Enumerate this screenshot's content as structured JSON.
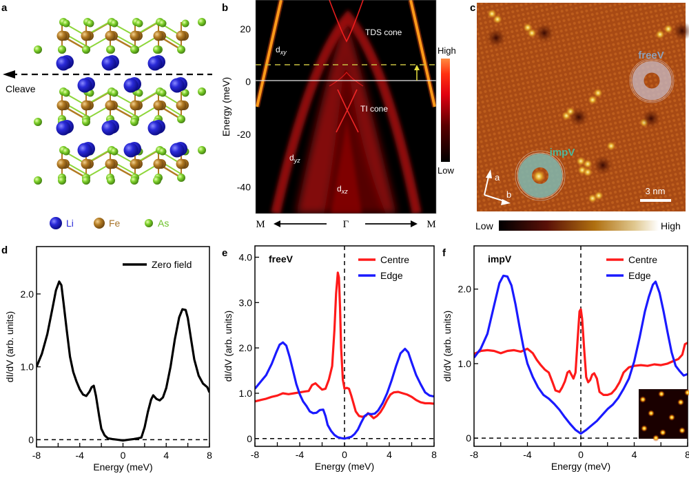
{
  "panels": {
    "a": {
      "label": "a",
      "cleave_label": "Cleave",
      "legend": [
        {
          "name": "Li",
          "color": "#2a2ad8",
          "text_color": "#2a2ad8"
        },
        {
          "name": "Fe",
          "color": "#b27a22",
          "text_color": "#a8742a"
        },
        {
          "name": "As",
          "color": "#7ccf2a",
          "text_color": "#6dc22a"
        }
      ]
    },
    "b": {
      "label": "b",
      "ylabel": "Energy (meV)",
      "yticks": [
        "20",
        "0",
        "-20",
        "-40"
      ],
      "ytick_values": [
        20,
        0,
        -20,
        -40
      ],
      "ylim": [
        -50,
        31
      ],
      "xlabels": [
        "M",
        "Γ",
        "M"
      ],
      "annotations": {
        "tds": "TDS cone",
        "ti": "TI cone",
        "dxy": "d",
        "dxy_sub": "xy",
        "dyz": "d",
        "dyz_sub": "yz",
        "dxz": "d",
        "dxz_sub": "xz"
      },
      "fermi_level": 0,
      "dashed_level": 6,
      "colorbar": {
        "high": "High",
        "low": "Low"
      }
    },
    "c": {
      "label": "c",
      "freeV": "freeV",
      "impV": "impV",
      "axis_a": "a",
      "axis_b": "b",
      "scale_bar": "3 nm",
      "colorbar": {
        "low": "Low",
        "high": "High"
      }
    }
  },
  "chart_data": [
    {
      "panel": "d",
      "type": "line",
      "title": "",
      "xlabel": "Energy (meV)",
      "ylabel": "dI/dV (arb. units)",
      "xlim": [
        -8,
        8
      ],
      "ylim": [
        -0.1,
        2.65
      ],
      "xticks": [
        "-8",
        "-4",
        "0",
        "4",
        "8"
      ],
      "xtick_values": [
        -8,
        -4,
        0,
        4,
        8
      ],
      "yticks": [
        "0",
        "1.0",
        "2.0"
      ],
      "ytick_values": [
        0,
        1.0,
        2.0
      ],
      "legend_position": "top-right",
      "series": [
        {
          "name": "Zero field",
          "color": "#000000",
          "x": [
            -8,
            -7.5,
            -7,
            -6.5,
            -6.2,
            -5.9,
            -5.7,
            -5.5,
            -5.2,
            -4.9,
            -4.6,
            -4.3,
            -4.0,
            -3.7,
            -3.4,
            -3.1,
            -2.9,
            -2.7,
            -2.5,
            -2.2,
            -2.0,
            -1.7,
            -1.4,
            -1.0,
            -0.5,
            0,
            0.5,
            1.0,
            1.4,
            1.7,
            2.0,
            2.3,
            2.6,
            2.8,
            3.1,
            3.4,
            3.7,
            4.0,
            4.4,
            4.8,
            5.2,
            5.5,
            5.8,
            6.0,
            6.3,
            6.6,
            7.0,
            7.4,
            7.8,
            8
          ],
          "y": [
            1.0,
            1.18,
            1.45,
            1.82,
            2.05,
            2.17,
            2.12,
            1.88,
            1.5,
            1.14,
            0.93,
            0.8,
            0.69,
            0.62,
            0.6,
            0.66,
            0.72,
            0.74,
            0.6,
            0.32,
            0.15,
            0.06,
            0.02,
            0.01,
            0.0,
            -0.01,
            0.0,
            0.01,
            0.02,
            0.03,
            0.17,
            0.38,
            0.55,
            0.61,
            0.56,
            0.54,
            0.58,
            0.71,
            1.0,
            1.38,
            1.68,
            1.79,
            1.78,
            1.67,
            1.38,
            1.1,
            0.88,
            0.77,
            0.72,
            0.65
          ]
        }
      ]
    },
    {
      "panel": "e",
      "type": "line",
      "title": "freeV",
      "xlabel": "Energy (meV)",
      "ylabel": "dI/dV (arb. units)",
      "xlim": [
        -8,
        8
      ],
      "ylim": [
        -0.17,
        4.25
      ],
      "xticks": [
        "-8",
        "-4",
        "0",
        "4",
        "8"
      ],
      "xtick_values": [
        -8,
        -4,
        0,
        4,
        8
      ],
      "yticks": [
        "0",
        "1.0",
        "2.0",
        "3.0",
        "4.0"
      ],
      "ytick_values": [
        0,
        1.0,
        2.0,
        3.0,
        4.0
      ],
      "legend_position": "top-right",
      "series": [
        {
          "name": "Centre",
          "color": "#ff1a1a",
          "x": [
            -8,
            -7.5,
            -7,
            -6.5,
            -6,
            -5.5,
            -5,
            -4.5,
            -4,
            -3.5,
            -3.2,
            -2.9,
            -2.6,
            -2.3,
            -2.0,
            -1.7,
            -1.4,
            -1.1,
            -0.9,
            -0.75,
            -0.6,
            -0.5,
            -0.4,
            -0.3,
            -0.15,
            0,
            0.2,
            0.4,
            0.6,
            0.8,
            1.0,
            1.3,
            1.6,
            1.9,
            2.1,
            2.3,
            2.6,
            2.9,
            3.2,
            3.5,
            3.8,
            4.1,
            4.4,
            4.8,
            5.2,
            5.6,
            6.0,
            6.4,
            6.8,
            7.2,
            7.6,
            8
          ],
          "y": [
            0.82,
            0.85,
            0.88,
            0.92,
            0.95,
            1.0,
            0.98,
            1.0,
            1.02,
            1.04,
            1.05,
            1.18,
            1.22,
            1.15,
            1.08,
            1.1,
            1.3,
            1.6,
            2.4,
            3.2,
            3.66,
            3.55,
            2.9,
            2.0,
            1.3,
            1.1,
            1.12,
            1.1,
            0.95,
            0.78,
            0.6,
            0.5,
            0.48,
            0.5,
            0.56,
            0.52,
            0.45,
            0.5,
            0.58,
            0.7,
            0.85,
            0.97,
            1.02,
            1.03,
            1.0,
            0.97,
            0.92,
            0.85,
            0.8,
            0.78,
            0.78,
            0.77
          ]
        },
        {
          "name": "Edge",
          "color": "#1a1aff",
          "x": [
            -8,
            -7.5,
            -7,
            -6.5,
            -6.1,
            -5.8,
            -5.5,
            -5.2,
            -4.9,
            -4.6,
            -4.3,
            -4.0,
            -3.7,
            -3.4,
            -3.1,
            -2.8,
            -2.5,
            -2.2,
            -1.9,
            -1.7,
            -1.5,
            -1.2,
            -0.9,
            -0.6,
            -0.3,
            0,
            0.3,
            0.6,
            0.9,
            1.2,
            1.5,
            1.8,
            2.1,
            2.4,
            2.7,
            3.0,
            3.4,
            3.8,
            4.2,
            4.6,
            5.0,
            5.4,
            5.7,
            6.0,
            6.4,
            6.8,
            7.2,
            7.6,
            8
          ],
          "y": [
            1.1,
            1.25,
            1.4,
            1.65,
            1.9,
            2.07,
            2.12,
            2.05,
            1.8,
            1.5,
            1.2,
            0.98,
            0.82,
            0.72,
            0.6,
            0.56,
            0.57,
            0.63,
            0.64,
            0.5,
            0.3,
            0.17,
            0.08,
            0.03,
            0.01,
            0.0,
            0.02,
            0.04,
            0.1,
            0.2,
            0.36,
            0.5,
            0.55,
            0.54,
            0.55,
            0.62,
            0.78,
            1.0,
            1.28,
            1.6,
            1.88,
            1.98,
            1.9,
            1.68,
            1.4,
            1.2,
            1.02,
            0.95,
            0.93
          ]
        }
      ]
    },
    {
      "panel": "f",
      "type": "line",
      "title": "impV",
      "xlabel": "Energy (meV)",
      "ylabel": "dI/dV (arb. units)",
      "xlim": [
        -8,
        8
      ],
      "ylim": [
        -0.11,
        2.58
      ],
      "xticks": [
        "-8",
        "-4",
        "0",
        "4",
        "8"
      ],
      "xtick_values": [
        -8,
        -4,
        0,
        4,
        8
      ],
      "yticks": [
        "0",
        "1.0",
        "2.0"
      ],
      "ytick_values": [
        0,
        1.0,
        2.0
      ],
      "legend_position": "top-right",
      "inset": "STM map inset (bottom-right)",
      "series": [
        {
          "name": "Centre",
          "color": "#ff1a1a",
          "x": [
            -8,
            -7.5,
            -7,
            -6.5,
            -6,
            -5.5,
            -5,
            -4.5,
            -4,
            -3.6,
            -3.3,
            -3.0,
            -2.7,
            -2.4,
            -2.1,
            -1.9,
            -1.6,
            -1.4,
            -1.2,
            -1.0,
            -0.85,
            -0.7,
            -0.55,
            -0.4,
            -0.25,
            -0.1,
            0,
            0.1,
            0.25,
            0.4,
            0.55,
            0.7,
            0.85,
            1.0,
            1.2,
            1.4,
            1.7,
            2.0,
            2.3,
            2.6,
            2.9,
            3.2,
            3.6,
            4.0,
            4.5,
            5,
            5.5,
            6,
            6.5,
            7,
            7.3,
            7.6,
            7.8,
            8
          ],
          "y": [
            1.13,
            1.17,
            1.18,
            1.17,
            1.14,
            1.17,
            1.18,
            1.16,
            1.2,
            1.14,
            1.05,
            0.98,
            0.92,
            0.88,
            0.74,
            0.64,
            0.62,
            0.68,
            0.76,
            0.88,
            0.9,
            0.85,
            0.8,
            0.88,
            1.3,
            1.7,
            1.73,
            1.6,
            1.2,
            0.82,
            0.75,
            0.78,
            0.85,
            0.87,
            0.8,
            0.62,
            0.58,
            0.58,
            0.6,
            0.66,
            0.75,
            0.88,
            0.95,
            0.97,
            0.98,
            0.97,
            0.99,
            0.98,
            1.0,
            1.04,
            1.06,
            1.12,
            1.26,
            1.28
          ]
        },
        {
          "name": "Edge",
          "color": "#1a1aff",
          "x": [
            -8,
            -7.5,
            -7,
            -6.5,
            -6.1,
            -5.8,
            -5.5,
            -5.2,
            -4.9,
            -4.6,
            -4.3,
            -4.0,
            -3.6,
            -3.2,
            -2.8,
            -2.4,
            -2.0,
            -1.6,
            -1.2,
            -0.8,
            -0.4,
            0,
            0.4,
            0.8,
            1.2,
            1.6,
            2.0,
            2.4,
            2.8,
            3.2,
            3.6,
            4.0,
            4.4,
            4.8,
            5.1,
            5.4,
            5.6,
            5.9,
            6.2,
            6.5,
            6.8,
            7.1,
            7.4,
            7.7,
            8
          ],
          "y": [
            1.08,
            1.2,
            1.4,
            1.78,
            2.08,
            2.18,
            2.17,
            2.05,
            1.8,
            1.5,
            1.22,
            1.0,
            0.82,
            0.68,
            0.58,
            0.53,
            0.46,
            0.38,
            0.28,
            0.19,
            0.11,
            0.06,
            0.11,
            0.17,
            0.23,
            0.31,
            0.39,
            0.45,
            0.54,
            0.66,
            0.8,
            1.03,
            1.35,
            1.7,
            1.9,
            2.06,
            2.1,
            1.95,
            1.7,
            1.42,
            1.15,
            0.97,
            0.9,
            0.84,
            0.86
          ]
        }
      ]
    }
  ]
}
